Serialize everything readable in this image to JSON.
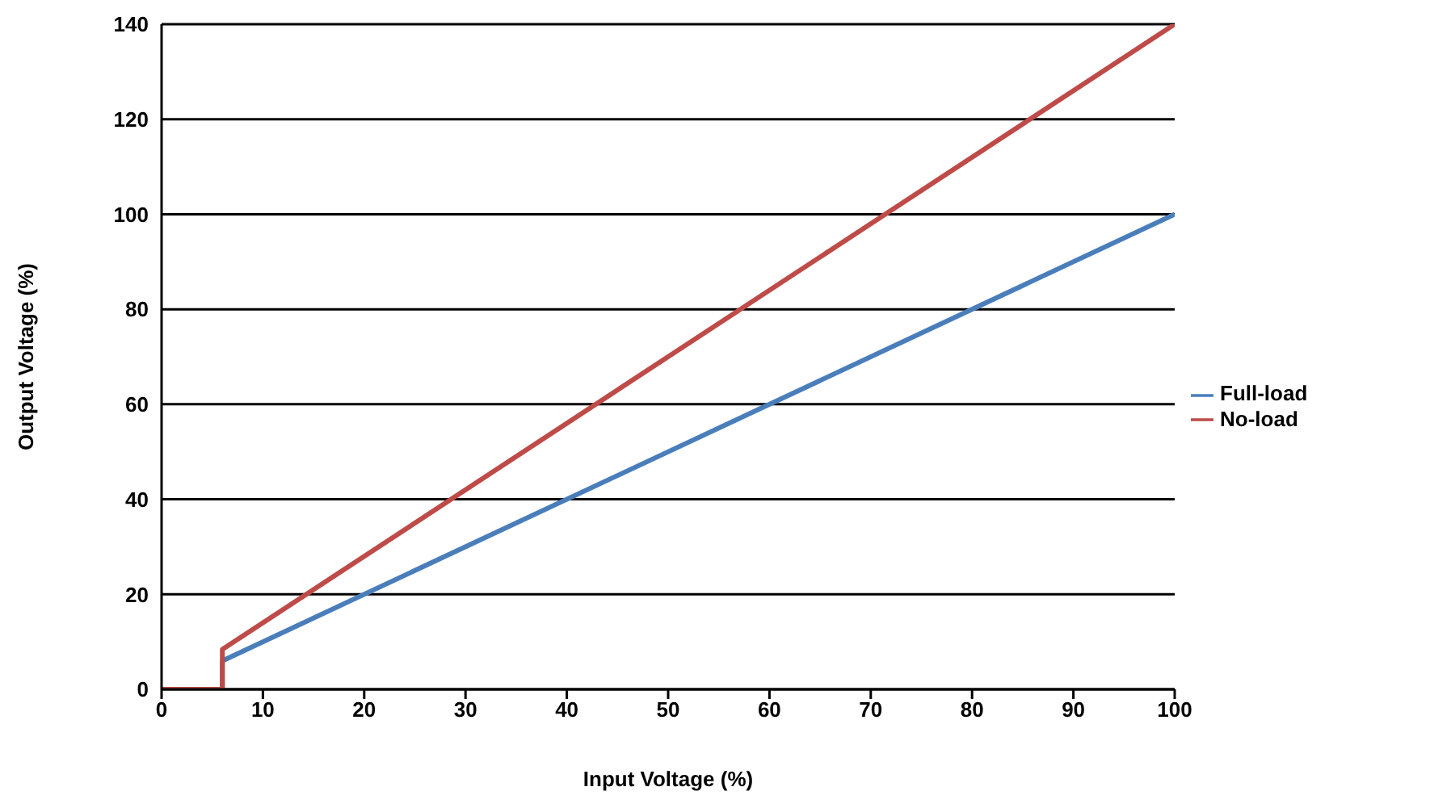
{
  "chart_data": {
    "type": "line",
    "xlabel": "Input Voltage (%)",
    "ylabel": "Output Voltage (%)",
    "xlim": [
      0,
      100
    ],
    "xticks": [
      0,
      10,
      20,
      30,
      40,
      50,
      60,
      70,
      80,
      90,
      100
    ],
    "ylim": [
      0,
      140
    ],
    "yticks": [
      0,
      20,
      40,
      60,
      80,
      100,
      120,
      140
    ],
    "grid": "y",
    "legend": "right",
    "marker": "none",
    "line_style": "solid",
    "series": [
      {
        "name": "Full-load",
        "color": "#4a7ebb",
        "x": [
          0,
          6,
          6,
          100
        ],
        "values": [
          0,
          0,
          6,
          100
        ]
      },
      {
        "name": "No-load",
        "color": "#be4b48",
        "x": [
          0,
          6,
          6,
          100
        ],
        "values": [
          0,
          0,
          8.4,
          140
        ]
      }
    ]
  }
}
